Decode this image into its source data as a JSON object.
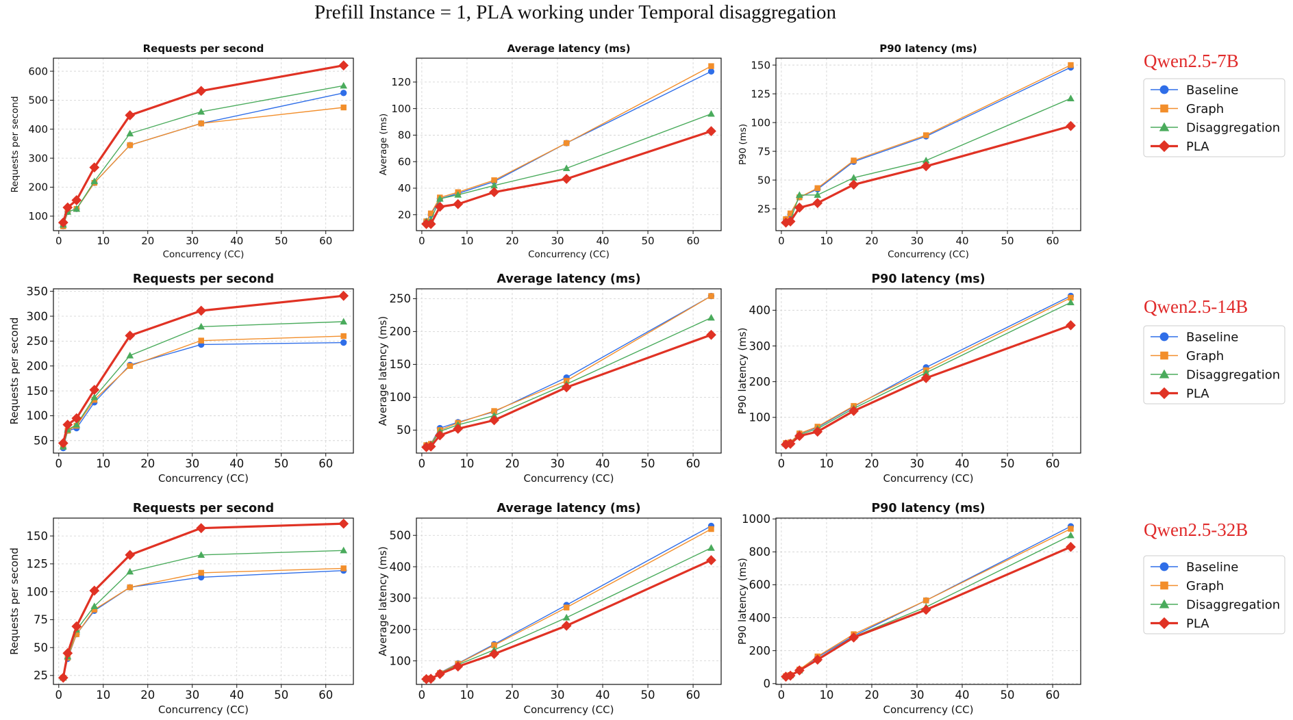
{
  "figure_title": "Prefill Instance = 1, PLA working under Temporal disaggregation",
  "colors": {
    "Baseline": "#2f6ee8",
    "Graph": "#f28e2b",
    "Disaggregation": "#4aab5c",
    "PLA": "#e03224"
  },
  "markers": {
    "Baseline": "circle",
    "Graph": "square",
    "Disaggregation": "triangle",
    "PLA": "diamond"
  },
  "legend": [
    "Baseline",
    "Graph",
    "Disaggregation",
    "PLA"
  ],
  "rows": [
    {
      "model": "Qwen2.5-7B"
    },
    {
      "model": "Qwen2.5-14B"
    },
    {
      "model": "Qwen2.5-32B"
    }
  ],
  "chart_data": [
    {
      "type": "line",
      "row": 0,
      "col": 0,
      "title": "Requests per second",
      "xlabel": "Concurrency (CC)",
      "ylabel": "Requests per second",
      "xlim": [
        -1.2,
        66.2
      ],
      "ylim": [
        50,
        645
      ],
      "xticks": [
        0,
        10,
        20,
        30,
        40,
        50,
        60
      ],
      "yticks": [
        100,
        200,
        300,
        400,
        500,
        600
      ],
      "x": [
        1,
        2,
        4,
        8,
        16,
        32,
        64
      ],
      "series": [
        {
          "name": "Baseline",
          "values": [
            65,
            115,
            125,
            215,
            345,
            420,
            525
          ]
        },
        {
          "name": "Graph",
          "values": [
            65,
            115,
            125,
            215,
            345,
            420,
            475
          ]
        },
        {
          "name": "Disaggregation",
          "values": [
            70,
            115,
            125,
            220,
            385,
            460,
            550
          ]
        },
        {
          "name": "PLA",
          "values": [
            78,
            130,
            155,
            268,
            448,
            532,
            620
          ]
        }
      ]
    },
    {
      "type": "line",
      "row": 0,
      "col": 1,
      "title": "Average latency (ms)",
      "xlabel": "Concurrency (CC)",
      "ylabel": "Average (ms)",
      "xlim": [
        -1.2,
        66.2
      ],
      "ylim": [
        8,
        138
      ],
      "xticks": [
        0,
        10,
        20,
        30,
        40,
        50,
        60
      ],
      "yticks": [
        20,
        40,
        60,
        80,
        100,
        120
      ],
      "x": [
        1,
        2,
        4,
        8,
        16,
        32,
        64
      ],
      "series": [
        {
          "name": "Baseline",
          "values": [
            15,
            20,
            32,
            36,
            45,
            74,
            128
          ]
        },
        {
          "name": "Graph",
          "values": [
            15,
            21,
            33,
            37,
            46,
            74,
            132
          ]
        },
        {
          "name": "Disaggregation",
          "values": [
            15,
            16,
            32,
            35,
            42,
            55,
            96
          ]
        },
        {
          "name": "PLA",
          "values": [
            13,
            13,
            26,
            28,
            37,
            47,
            83
          ]
        }
      ]
    },
    {
      "type": "line",
      "row": 0,
      "col": 2,
      "title": "P90 latency (ms)",
      "xlabel": "Concurrency (CC)",
      "ylabel": "P90 (ms)",
      "xlim": [
        -1.2,
        66.2
      ],
      "ylim": [
        6,
        156
      ],
      "xticks": [
        0,
        10,
        20,
        30,
        40,
        50,
        60
      ],
      "yticks": [
        25,
        50,
        75,
        100,
        125,
        150
      ],
      "x": [
        1,
        2,
        4,
        8,
        16,
        32,
        64
      ],
      "series": [
        {
          "name": "Baseline",
          "values": [
            16,
            20,
            35,
            42,
            66,
            88,
            148
          ]
        },
        {
          "name": "Graph",
          "values": [
            16,
            21,
            35,
            43,
            67,
            89,
            150
          ]
        },
        {
          "name": "Disaggregation",
          "values": [
            14,
            15,
            37,
            37,
            52,
            67,
            121
          ]
        },
        {
          "name": "PLA",
          "values": [
            13,
            14,
            26,
            30,
            46,
            62,
            97
          ]
        }
      ]
    },
    {
      "type": "line",
      "row": 1,
      "col": 0,
      "title": "Requests per second",
      "xlabel": "Concurrency (CC)",
      "ylabel": "Requests per second",
      "xlim": [
        -1.2,
        66.2
      ],
      "ylim": [
        25,
        355
      ],
      "xticks": [
        0,
        10,
        20,
        30,
        40,
        50,
        60
      ],
      "yticks": [
        50,
        100,
        150,
        200,
        250,
        300,
        350
      ],
      "x": [
        1,
        2,
        4,
        8,
        16,
        32,
        64
      ],
      "series": [
        {
          "name": "Baseline",
          "values": [
            35,
            70,
            75,
            127,
            202,
            243,
            247
          ]
        },
        {
          "name": "Graph",
          "values": [
            38,
            70,
            80,
            132,
            200,
            251,
            260
          ]
        },
        {
          "name": "Disaggregation",
          "values": [
            38,
            72,
            82,
            137,
            221,
            279,
            289
          ]
        },
        {
          "name": "PLA",
          "values": [
            45,
            82,
            95,
            152,
            261,
            311,
            341
          ]
        }
      ]
    },
    {
      "type": "line",
      "row": 1,
      "col": 1,
      "title": "Average latency (ms)",
      "xlabel": "Concurrency (CC)",
      "ylabel": "Average latency (ms)",
      "xlim": [
        -1.2,
        66.2
      ],
      "ylim": [
        15,
        265
      ],
      "xticks": [
        0,
        10,
        20,
        30,
        40,
        50,
        60
      ],
      "yticks": [
        50,
        100,
        150,
        200,
        250
      ],
      "x": [
        1,
        2,
        4,
        8,
        16,
        32,
        64
      ],
      "series": [
        {
          "name": "Baseline",
          "values": [
            27,
            29,
            53,
            62,
            78,
            130,
            254
          ]
        },
        {
          "name": "Graph",
          "values": [
            27,
            29,
            50,
            61,
            79,
            125,
            254
          ]
        },
        {
          "name": "Disaggregation",
          "values": [
            27,
            28,
            48,
            58,
            72,
            120,
            221
          ]
        },
        {
          "name": "PLA",
          "values": [
            24,
            25,
            42,
            52,
            65,
            115,
            195
          ]
        }
      ]
    },
    {
      "type": "line",
      "row": 1,
      "col": 2,
      "title": "P90 latency (ms)",
      "xlabel": "Concurrency (CC)",
      "ylabel": "P90 latency (ms)",
      "xlim": [
        -1.2,
        66.2
      ],
      "ylim": [
        0,
        460
      ],
      "xticks": [
        0,
        10,
        20,
        30,
        40,
        50,
        60
      ],
      "yticks": [
        100,
        200,
        300,
        400
      ],
      "x": [
        1,
        2,
        4,
        8,
        16,
        32,
        64
      ],
      "series": [
        {
          "name": "Baseline",
          "values": [
            28,
            30,
            55,
            72,
            130,
            240,
            440
          ]
        },
        {
          "name": "Graph",
          "values": [
            28,
            30,
            55,
            74,
            132,
            232,
            435
          ]
        },
        {
          "name": "Disaggregation",
          "values": [
            26,
            28,
            52,
            68,
            125,
            225,
            422
          ]
        },
        {
          "name": "PLA",
          "values": [
            24,
            26,
            48,
            60,
            118,
            210,
            358
          ]
        }
      ]
    },
    {
      "type": "line",
      "row": 2,
      "col": 0,
      "title": "Requests per second",
      "xlabel": "Concurrency (CC)",
      "ylabel": "Requests per second",
      "xlim": [
        -1.2,
        66.2
      ],
      "ylim": [
        17,
        166
      ],
      "xticks": [
        0,
        10,
        20,
        30,
        40,
        50,
        60
      ],
      "yticks": [
        25,
        50,
        75,
        100,
        125,
        150
      ],
      "x": [
        1,
        2,
        4,
        8,
        16,
        32,
        64
      ],
      "series": [
        {
          "name": "Baseline",
          "values": [
            23,
            40,
            62,
            83,
            104,
            113,
            119
          ]
        },
        {
          "name": "Graph",
          "values": [
            23,
            41,
            62,
            84,
            104,
            117,
            121
          ]
        },
        {
          "name": "Disaggregation",
          "values": [
            23,
            42,
            66,
            87,
            118,
            133,
            137
          ]
        },
        {
          "name": "PLA",
          "values": [
            23,
            45,
            69,
            101,
            133,
            157,
            161
          ]
        }
      ]
    },
    {
      "type": "line",
      "row": 2,
      "col": 1,
      "title": "Average latency (ms)",
      "xlabel": "Concurrency (CC)",
      "ylabel": "Average latency (ms)",
      "xlim": [
        -1.2,
        66.2
      ],
      "ylim": [
        25,
        555
      ],
      "xticks": [
        0,
        10,
        20,
        30,
        40,
        50,
        60
      ],
      "yticks": [
        100,
        200,
        300,
        400,
        500
      ],
      "x": [
        1,
        2,
        4,
        8,
        16,
        32,
        64
      ],
      "series": [
        {
          "name": "Baseline",
          "values": [
            42,
            44,
            62,
            92,
            153,
            278,
            530
          ]
        },
        {
          "name": "Graph",
          "values": [
            42,
            44,
            61,
            91,
            150,
            270,
            520
          ]
        },
        {
          "name": "Disaggregation",
          "values": [
            42,
            44,
            60,
            88,
            135,
            238,
            460
          ]
        },
        {
          "name": "PLA",
          "values": [
            42,
            43,
            58,
            82,
            122,
            212,
            421
          ]
        }
      ]
    },
    {
      "type": "line",
      "row": 2,
      "col": 2,
      "title": "P90 latency (ms)",
      "xlabel": "Concurrency (CC)",
      "ylabel": "P90 latency (ms)",
      "xlim": [
        -1.2,
        66.2
      ],
      "ylim": [
        -5,
        1005
      ],
      "xticks": [
        0,
        10,
        20,
        30,
        40,
        50,
        60
      ],
      "yticks": [
        0,
        200,
        400,
        600,
        800,
        1000
      ],
      "x": [
        1,
        2,
        4,
        8,
        16,
        32,
        64
      ],
      "series": [
        {
          "name": "Baseline",
          "values": [
            45,
            52,
            85,
            160,
            290,
            505,
            955
          ]
        },
        {
          "name": "Graph",
          "values": [
            45,
            52,
            85,
            165,
            300,
            505,
            940
          ]
        },
        {
          "name": "Disaggregation",
          "values": [
            44,
            50,
            80,
            150,
            285,
            465,
            900
          ]
        },
        {
          "name": "PLA",
          "values": [
            42,
            48,
            80,
            145,
            280,
            448,
            830
          ]
        }
      ]
    }
  ]
}
